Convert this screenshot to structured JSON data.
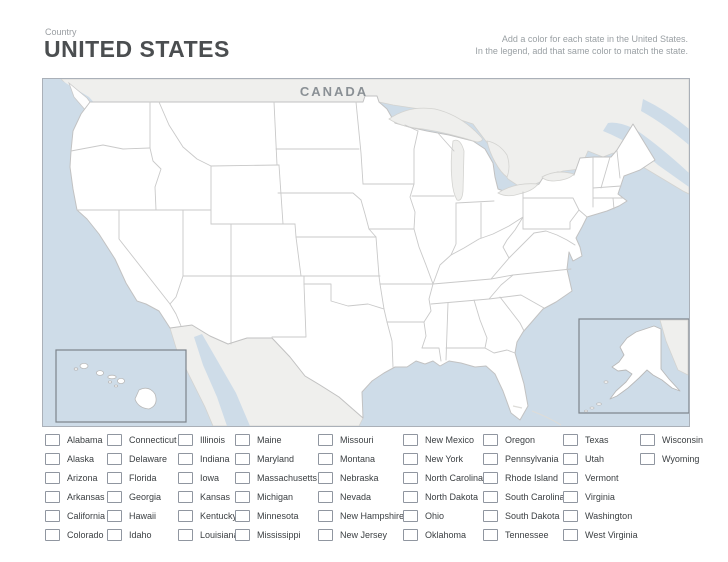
{
  "header": {
    "country_label": "Country",
    "title": "UNITED STATES",
    "instructions_line1": "Add a color for each state in the United States.",
    "instructions_line2": "In the legend, add that same color to match the state."
  },
  "map": {
    "canada_label": "CANADA",
    "insets": [
      "hawaii",
      "alaska"
    ]
  },
  "colors": {
    "ocean": "#cedce8",
    "foreign_land": "#efefed",
    "state_fill": "#ffffff",
    "state_border": "#c9c9c9",
    "map_border": "#aab0b8",
    "title_text": "#4b4e50",
    "muted_text": "#9aa0a4",
    "canada_text": "#8a9095"
  },
  "legend": {
    "columns": [
      [
        "Alabama",
        "Alaska",
        "Arizona",
        "Arkansas",
        "California",
        "Colorado"
      ],
      [
        "Connecticut",
        "Delaware",
        "Florida",
        "Georgia",
        "Hawaii",
        "Idaho"
      ],
      [
        "Illinois",
        "Indiana",
        "Iowa",
        "Kansas",
        "Kentucky",
        "Louisiana"
      ],
      [
        "Maine",
        "Maryland",
        "Massachusetts",
        "Michigan",
        "Minnesota",
        "Mississippi"
      ],
      [
        "Missouri",
        "Montana",
        "Nebraska",
        "Nevada",
        "New Hampshire",
        "New Jersey"
      ],
      [
        "New Mexico",
        "New York",
        "North Carolina",
        "North Dakota",
        "Ohio",
        "Oklahoma"
      ],
      [
        "Oregon",
        "Pennsylvania",
        "Rhode Island",
        "South Carolina",
        "South Dakota",
        "Tennessee"
      ],
      [
        "Texas",
        "Utah",
        "Vermont",
        "Virginia",
        "Washington",
        "West Virginia"
      ],
      [
        "Wisconsin",
        "Wyoming"
      ]
    ]
  }
}
